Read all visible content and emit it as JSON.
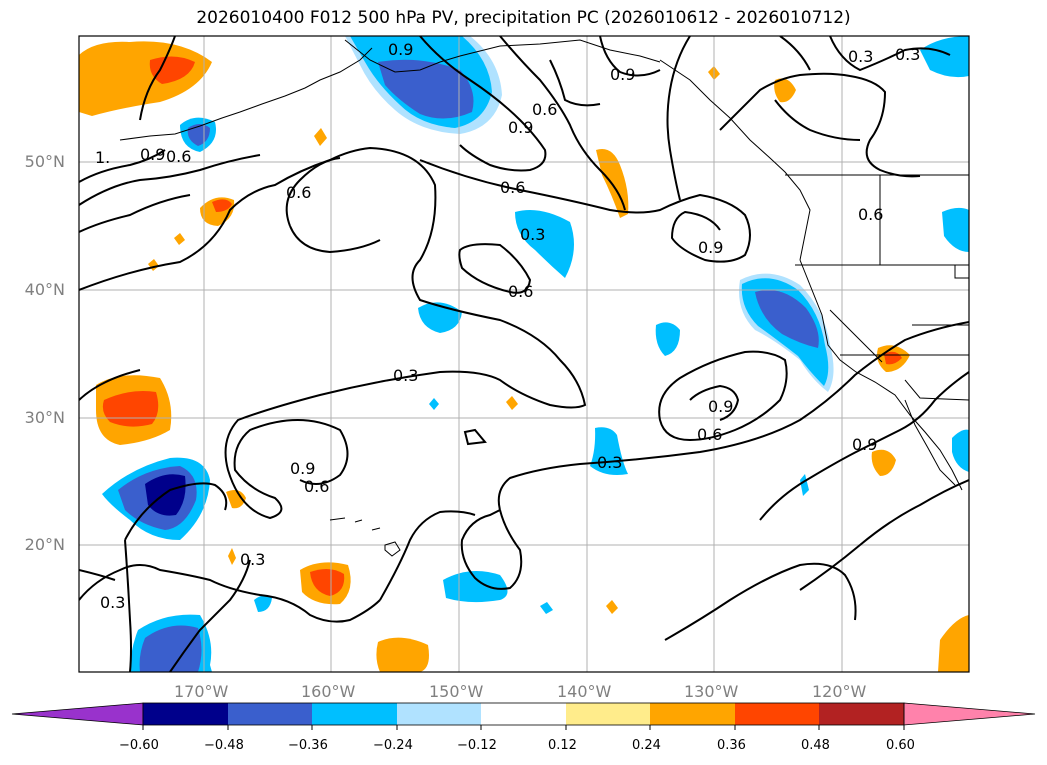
{
  "title": "2026010400 F012 500 hPa PV, precipitation PC (2026010612 - 2026010712)",
  "lat_labels": [
    "50°N",
    "40°N",
    "30°N",
    "20°N"
  ],
  "lon_labels": [
    "170°W",
    "160°W",
    "150°W",
    "140°W",
    "130°W",
    "120°W"
  ],
  "contour_labels": [
    "0.9",
    "0.9",
    "0.6",
    "0.9",
    "0.6",
    "0.3",
    "1.",
    "0.9",
    "0.6",
    "0.6",
    "0.6",
    "0.9",
    "0.6",
    "0.9",
    "0.3",
    "0.3",
    "0.9",
    "0.6",
    "0.3",
    "0.9",
    "0.6",
    "0.3",
    "0.3",
    "0.3"
  ],
  "colorbar": {
    "ticks": [
      "−0.60",
      "−0.48",
      "−0.36",
      "−0.24",
      "−0.12",
      "0.12",
      "0.24",
      "0.36",
      "0.48",
      "0.60"
    ],
    "under_color": "#9932cc",
    "colors": [
      "#00008b",
      "#3a5fcd",
      "#00bfff",
      "#b0e2ff",
      "#ffffff",
      "#ffec8b",
      "#ffa500",
      "#ff4500",
      "#b22222",
      "#ff82ab"
    ],
    "over_color": "#ff82ab"
  }
}
